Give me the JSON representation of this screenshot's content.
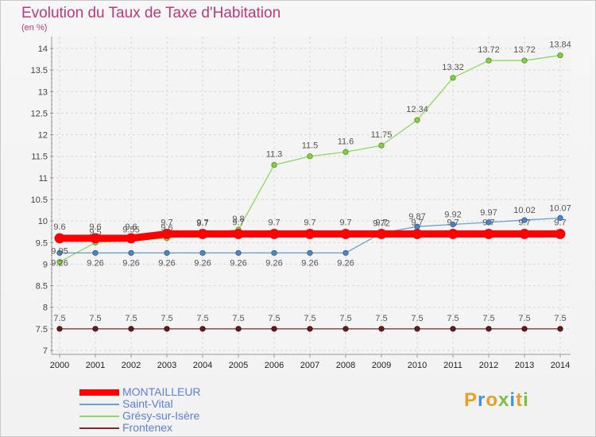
{
  "title": "Evolution du Taux de Taxe d'Habitation",
  "subtitle": "(en %)",
  "logo": {
    "letters": [
      "P",
      "r",
      "o",
      "x",
      "i",
      "t",
      "i"
    ],
    "colors": [
      "#e8a020",
      "#4a90d9",
      "#e8a020",
      "#7ac143",
      "#4a90d9",
      "#e8a020",
      "#7ac143"
    ]
  },
  "chart_data": {
    "type": "line",
    "title": "Evolution du Taux de Taxe d'Habitation",
    "ylabel": "(en %)",
    "ylim": [
      7,
      14
    ],
    "yticks": [
      "7",
      "7.5",
      "8",
      "8.5",
      "9",
      "9.5",
      "10",
      "10.5",
      "11",
      "11.5",
      "12",
      "12.5",
      "13",
      "13.5",
      "14"
    ],
    "x": [
      "2000",
      "2001",
      "2002",
      "2003",
      "2004",
      "2005",
      "2006",
      "2007",
      "2008",
      "2009",
      "2010",
      "2011",
      "2012",
      "2013",
      "2014"
    ],
    "grid": true,
    "legend_position": "bottom-left",
    "series": [
      {
        "name": "MONTAILLEUR",
        "color": "#ff0000",
        "values": [
          9.6,
          9.6,
          9.6,
          9.7,
          9.7,
          9.7,
          9.7,
          9.7,
          9.7,
          9.7,
          9.7,
          9.7,
          9.7,
          9.7,
          9.7
        ],
        "labels": [
          "9.6",
          "9.6",
          "9.6",
          "9.7",
          "9.7",
          "9.7",
          "9.7",
          "9.7",
          "9.7",
          "9.7",
          "9.7",
          "9.7",
          "9.7",
          "9.7",
          "9.7"
        ]
      },
      {
        "name": "Saint-Vital",
        "color": "#6aa0d8",
        "values": [
          9.26,
          9.26,
          9.26,
          9.26,
          9.26,
          9.26,
          9.26,
          9.26,
          9.26,
          9.72,
          9.87,
          9.92,
          9.97,
          10.02,
          10.07
        ],
        "labels": [
          "9.26",
          "9.26",
          "9.26",
          "9.26",
          "9.26",
          "9.26",
          "9.26",
          "9.26",
          "9.26",
          "9.72",
          "9.87",
          "9.92",
          "9.97",
          "10.02",
          "10.07"
        ]
      },
      {
        "name": "Grésy-sur-Isère",
        "color": "#8fd860",
        "values": [
          9.05,
          9.5,
          9.55,
          9.6,
          9.7,
          9.8,
          11.3,
          11.5,
          11.6,
          11.75,
          12.34,
          13.32,
          13.72,
          13.72,
          13.84
        ],
        "labels": [
          "9.05",
          "9.5",
          "9.55",
          "9.6",
          "9.7",
          "9.8",
          "11.3",
          "11.5",
          "11.6",
          "11.75",
          "12.34",
          "13.32",
          "13.72",
          "13.72",
          "13.84"
        ]
      },
      {
        "name": "Frontenex",
        "color": "#7a2a2a",
        "values": [
          7.5,
          7.5,
          7.5,
          7.5,
          7.5,
          7.5,
          7.5,
          7.5,
          7.5,
          7.5,
          7.5,
          7.5,
          7.5,
          7.5,
          7.5
        ],
        "labels": [
          "7.5",
          "7.5",
          "7.5",
          "7.5",
          "7.5",
          "7.5",
          "7.5",
          "7.5",
          "7.5",
          "7.5",
          "7.5",
          "7.5",
          "7.5",
          "7.5",
          "7.5"
        ]
      }
    ]
  }
}
